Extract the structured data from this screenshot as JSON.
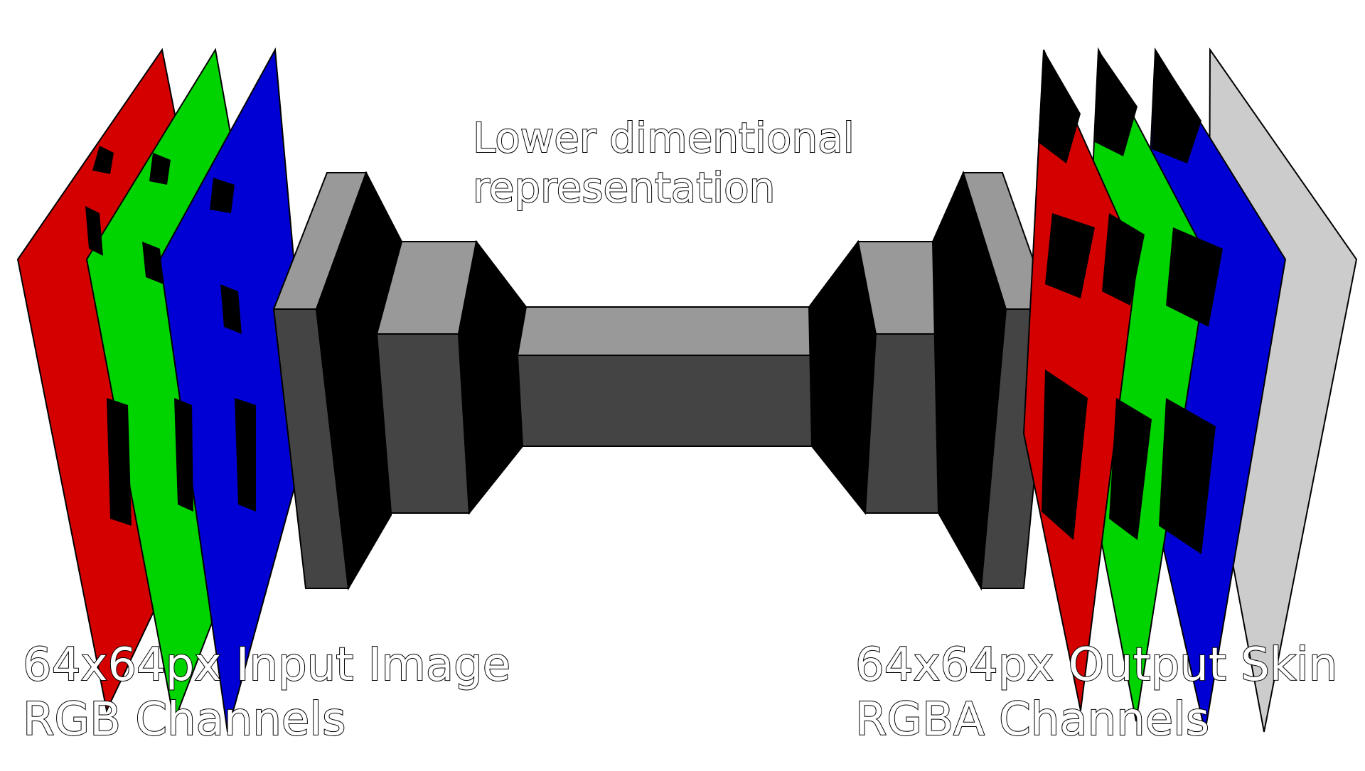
{
  "labels": {
    "input_line1": "64x64px Input Image",
    "input_line2": "RGB Channels",
    "latent_line1": "Lower dimentional",
    "latent_line2": "representation",
    "output_line1": "64x64px Output Skin",
    "output_line2": "RGBA Channels"
  },
  "channel_colors": {
    "red": "#d40000",
    "green": "#00d400",
    "blue": "#0000d4",
    "alpha": "#cccccc"
  },
  "block_colors": {
    "top": "#999999",
    "front": "#444444",
    "side": "#000000"
  }
}
